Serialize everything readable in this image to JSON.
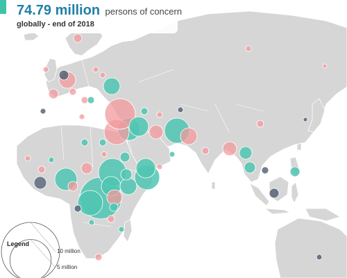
{
  "header": {
    "headline_number": "74.79 million",
    "headline_unit": "persons of concern",
    "subline": "globally - end of 2018"
  },
  "legend": {
    "title": "Legend",
    "sizes": [
      {
        "label": "10 million",
        "value_millions": 10
      },
      {
        "label": "5 million",
        "value_millions": 5
      }
    ]
  },
  "colors": {
    "ocean": "#ffffff",
    "land": "#d6d6d6",
    "border": "#ffffff",
    "accent_bar": "#3cc3a8",
    "headline": "#1f7fa6",
    "category_a": "#4fc6b1",
    "category_b": "#f39a9c",
    "category_c": "#4e5d70"
  }
}
